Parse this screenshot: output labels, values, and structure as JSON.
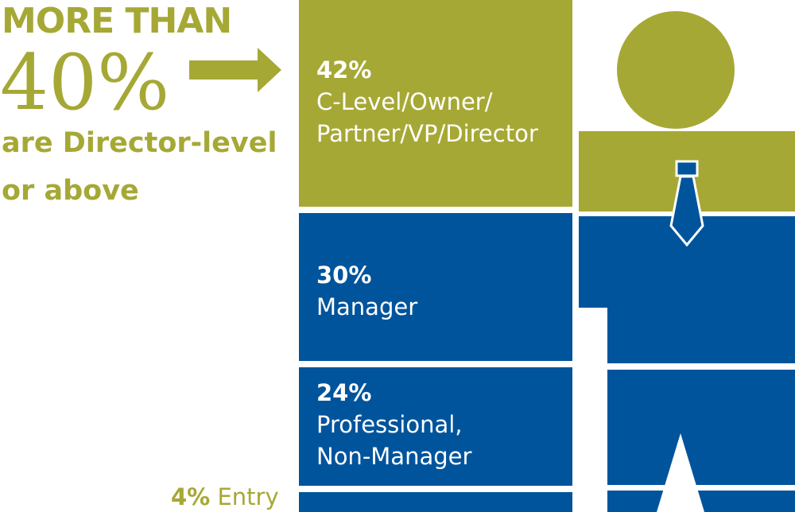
{
  "colors": {
    "olive": "#a6a835",
    "blue": "#00549c",
    "white": "#ffffff"
  },
  "headline": {
    "line1": "MORE THAN",
    "line2": "40%",
    "line3": "are Director-level",
    "line4": "or above"
  },
  "icons": [
    "right-arrow-icon",
    "person-figure-icon",
    "necktie-icon"
  ],
  "chart_data": {
    "type": "bar",
    "orientation": "stacked",
    "categories": [
      "C-Level/Owner/Partner/VP/Director",
      "Manager",
      "Professional, Non-Manager",
      "Entry"
    ],
    "values": [
      42,
      30,
      24,
      4
    ],
    "unit": "%",
    "segments": [
      {
        "pct": "42%",
        "line1": "C-Level/Owner/",
        "line2": "Partner/VP/Director",
        "value": 42,
        "color": "#a6a835"
      },
      {
        "pct": "30%",
        "line1": "Manager",
        "line2": "",
        "value": 30,
        "color": "#00549c"
      },
      {
        "pct": "24%",
        "line1": "Professional,",
        "line2": "Non-Manager",
        "value": 24,
        "color": "#00549c"
      },
      {
        "pct": "4%",
        "line1": "Entry",
        "line2": "",
        "value": 4,
        "color": "#00549c"
      }
    ]
  }
}
